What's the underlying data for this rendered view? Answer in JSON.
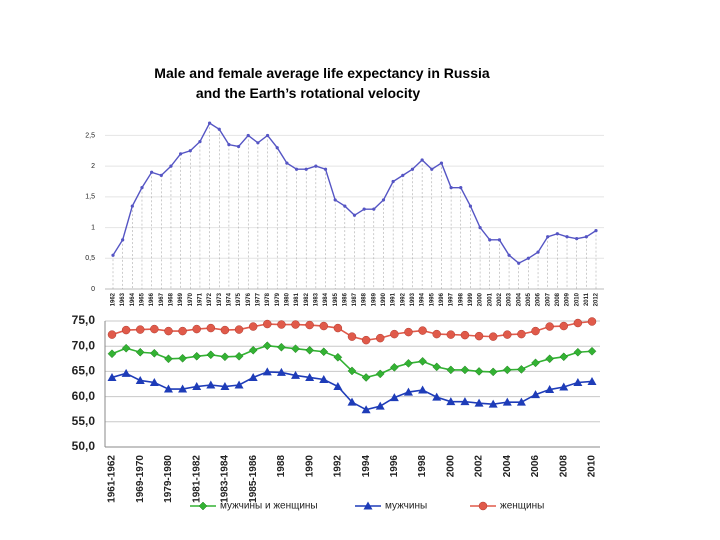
{
  "chart_data": [
    {
      "type": "line",
      "title": "Male and female average life expectancy in Russia and the Earth’s rotational velocity",
      "categories": [
        "1962",
        "1963",
        "1964",
        "1965",
        "1966",
        "1967",
        "1968",
        "1969",
        "1970",
        "1971",
        "1972",
        "1973",
        "1974",
        "1975",
        "1976",
        "1977",
        "1978",
        "1979",
        "1980",
        "1981",
        "1982",
        "1983",
        "1984",
        "1985",
        "1986",
        "1987",
        "1988",
        "1989",
        "1990",
        "1991",
        "1992",
        "1993",
        "1994",
        "1995",
        "1996",
        "1997",
        "1998",
        "1999",
        "2000",
        "2001",
        "2002",
        "2003",
        "2004",
        "2005",
        "2006",
        "2007",
        "2008",
        "2009",
        "2010",
        "2011",
        "2012"
      ],
      "values": [
        0.55,
        0.8,
        1.35,
        1.65,
        1.9,
        1.85,
        2.0,
        2.2,
        2.25,
        2.4,
        2.7,
        2.6,
        2.35,
        2.32,
        2.5,
        2.38,
        2.5,
        2.3,
        2.05,
        1.95,
        1.95,
        2.0,
        1.95,
        1.45,
        1.35,
        1.2,
        1.3,
        1.3,
        1.45,
        1.75,
        1.85,
        1.95,
        2.1,
        1.95,
        2.05,
        1.65,
        1.65,
        1.35,
        1.0,
        0.8,
        0.8,
        0.55,
        0.42,
        0.5,
        0.6,
        0.85,
        0.9,
        0.85,
        0.82,
        0.85,
        0.95
      ],
      "color": "#5555c4",
      "ylim": [
        0,
        2.8
      ],
      "yticks": [
        0,
        {
          "value": 0.5,
          "label": "0,5"
        },
        1,
        {
          "value": 1.5,
          "label": "1,5"
        },
        2,
        {
          "value": 2.5,
          "label": "2,5"
        }
      ],
      "grid": true
    },
    {
      "type": "line",
      "categories": [
        "1961-1962",
        null,
        "1969-1970",
        null,
        "1979-1980",
        null,
        "1981-1982",
        null,
        "1983-1984",
        null,
        "1985-1986",
        null,
        "1988",
        null,
        "1990",
        null,
        "1992",
        null,
        "1994",
        null,
        "1996",
        null,
        "1998",
        null,
        "2000",
        null,
        "2002",
        null,
        "2004",
        null,
        "2006",
        null,
        "2008",
        null,
        "2010"
      ],
      "series": [
        {
          "name": "мужчины и женщины",
          "color": "#33b233",
          "marker": "diamond",
          "values": [
            68.5,
            69.6,
            68.8,
            68.6,
            67.5,
            67.6,
            68,
            68.3,
            67.9,
            68,
            69.2,
            70.1,
            69.8,
            69.5,
            69.2,
            68.9,
            67.8,
            65.1,
            63.8,
            64.5,
            65.8,
            66.6,
            67,
            65.9,
            65.3,
            65.3,
            65,
            64.9,
            65.3,
            65.4,
            66.7,
            67.5,
            67.9,
            68.8,
            69
          ]
        },
        {
          "name": "мужчины",
          "color": "#1e3cb8",
          "marker": "triangle",
          "values": [
            63.8,
            64.6,
            63.2,
            62.8,
            61.5,
            61.5,
            62,
            62.3,
            62,
            62.3,
            63.8,
            64.9,
            64.8,
            64.2,
            63.8,
            63.4,
            62,
            58.9,
            57.4,
            58.1,
            59.8,
            60.9,
            61.3,
            59.9,
            59,
            59,
            58.7,
            58.5,
            58.9,
            58.9,
            60.4,
            61.4,
            61.9,
            62.8,
            63
          ]
        },
        {
          "name": "женщины",
          "color": "#e05a4a",
          "marker": "circle",
          "values": [
            72.3,
            73.2,
            73.3,
            73.4,
            73,
            73,
            73.4,
            73.6,
            73.2,
            73.3,
            73.9,
            74.4,
            74.3,
            74.3,
            74.2,
            74,
            73.6,
            71.9,
            71.2,
            71.6,
            72.4,
            72.8,
            73.1,
            72.4,
            72.3,
            72.2,
            72,
            71.9,
            72.3,
            72.4,
            73,
            73.9,
            74,
            74.6,
            74.9
          ]
        }
      ],
      "ylim": [
        50,
        75
      ],
      "yticks": [
        {
          "value": 50,
          "label": "50,0"
        },
        {
          "value": 55,
          "label": "55,0"
        },
        {
          "value": 60,
          "label": "60,0"
        },
        {
          "value": 65,
          "label": "65,0"
        },
        {
          "value": 70,
          "label": "70,0"
        },
        {
          "value": 75,
          "label": "75,0"
        }
      ],
      "grid": true
    }
  ]
}
